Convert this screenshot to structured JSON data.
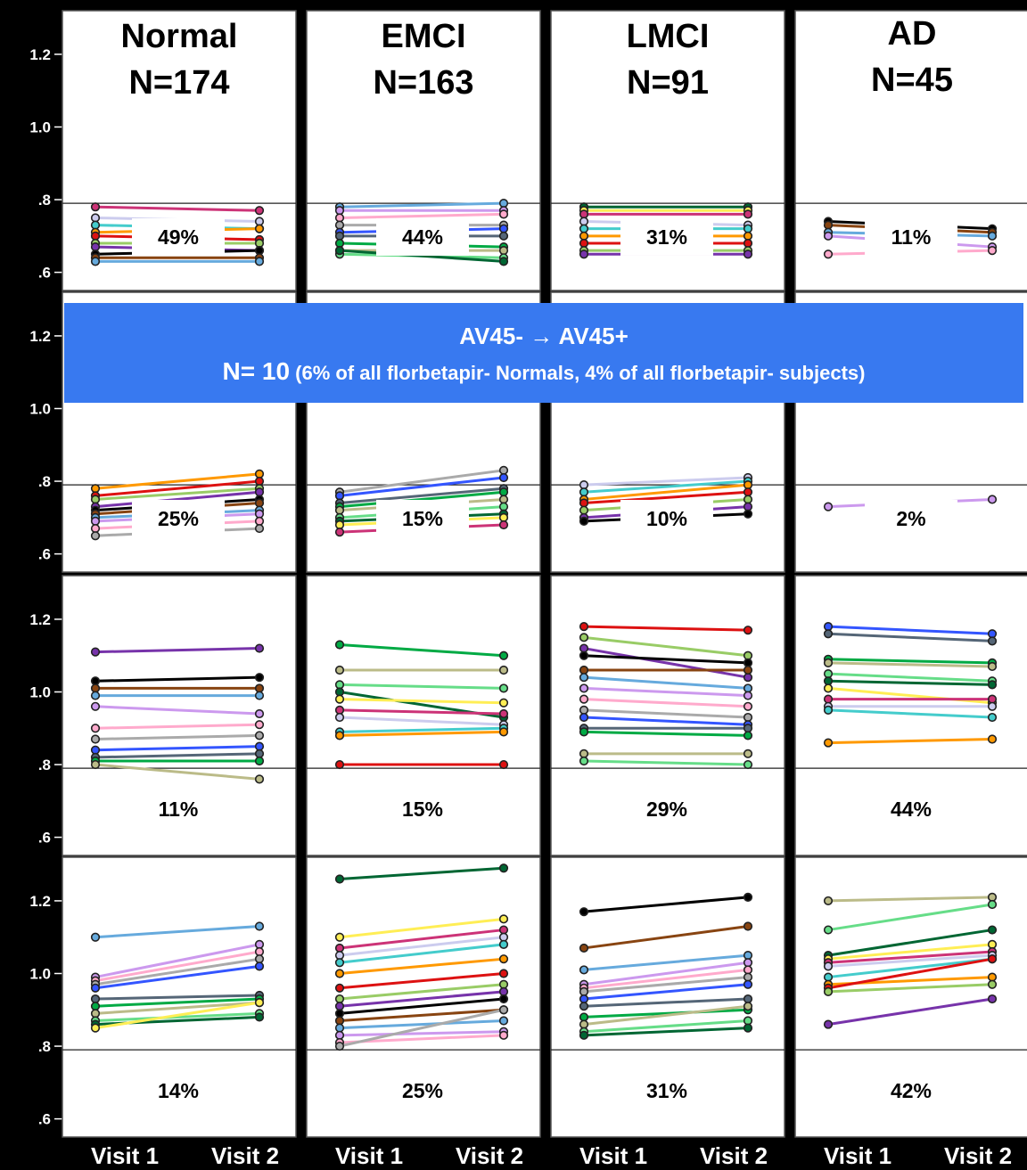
{
  "chart_data": {
    "type": "line",
    "y_ticks": [
      ".6",
      ".8",
      "1.0",
      "1.2"
    ],
    "ylim": [
      0.55,
      1.32
    ],
    "threshold": 0.79,
    "groups": [
      {
        "title": "Normal",
        "n": "N=174"
      },
      {
        "title": "EMCI",
        "n": "N=163"
      },
      {
        "title": "LMCI",
        "n": "N=91"
      },
      {
        "title": "AD",
        "n": "N=45"
      }
    ],
    "x_labels": [
      "Visit 1",
      "Visit 2"
    ],
    "banner": {
      "title": "AV45-  → AV45+",
      "n": "N= 10",
      "detail": " (6% of all florbetapir- Normals, 4% of all florbetapir- subjects)"
    },
    "rows": [
      {
        "percents": [
          "49%",
          "44%",
          "31%",
          "11%"
        ],
        "series": [
          [
            [
              0.78,
              0.77
            ],
            [
              0.75,
              0.74
            ],
            [
              0.73,
              0.72
            ],
            [
              0.71,
              0.72
            ],
            [
              0.7,
              0.69
            ],
            [
              0.68,
              0.68
            ],
            [
              0.67,
              0.66
            ],
            [
              0.65,
              0.66
            ],
            [
              0.64,
              0.64
            ],
            [
              0.63,
              0.63
            ]
          ],
          [
            [
              0.78,
              0.79
            ],
            [
              0.77,
              0.77
            ],
            [
              0.75,
              0.76
            ],
            [
              0.73,
              0.73
            ],
            [
              0.71,
              0.72
            ],
            [
              0.7,
              0.7
            ],
            [
              0.68,
              0.67
            ],
            [
              0.66,
              0.66
            ],
            [
              0.65,
              0.64
            ],
            [
              0.66,
              0.63
            ]
          ],
          [
            [
              0.78,
              0.78
            ],
            [
              0.77,
              0.77
            ],
            [
              0.76,
              0.76
            ],
            [
              0.74,
              0.73
            ],
            [
              0.72,
              0.72
            ],
            [
              0.7,
              0.7
            ],
            [
              0.68,
              0.68
            ],
            [
              0.66,
              0.66
            ],
            [
              0.65,
              0.65
            ]
          ],
          [
            [
              0.74,
              0.72
            ],
            [
              0.73,
              0.71
            ],
            [
              0.71,
              0.7
            ],
            [
              0.7,
              0.67
            ],
            [
              0.65,
              0.66
            ]
          ]
        ]
      },
      {
        "percents": [
          "25%",
          "15%",
          "10%",
          "2%"
        ],
        "series": [
          [
            [
              0.78,
              0.82
            ],
            [
              0.76,
              0.8
            ],
            [
              0.75,
              0.78
            ],
            [
              0.73,
              0.77
            ],
            [
              0.72,
              0.75
            ],
            [
              0.71,
              0.74
            ],
            [
              0.7,
              0.72
            ],
            [
              0.69,
              0.71
            ],
            [
              0.67,
              0.69
            ],
            [
              0.65,
              0.67
            ]
          ],
          [
            [
              0.77,
              0.83
            ],
            [
              0.76,
              0.81
            ],
            [
              0.74,
              0.78
            ],
            [
              0.73,
              0.77
            ],
            [
              0.72,
              0.75
            ],
            [
              0.7,
              0.73
            ],
            [
              0.69,
              0.71
            ],
            [
              0.68,
              0.7
            ],
            [
              0.66,
              0.68
            ]
          ],
          [
            [
              0.79,
              0.81
            ],
            [
              0.77,
              0.8
            ],
            [
              0.75,
              0.79
            ],
            [
              0.74,
              0.77
            ],
            [
              0.72,
              0.75
            ],
            [
              0.7,
              0.73
            ],
            [
              0.69,
              0.71
            ]
          ],
          [
            [
              0.73,
              0.75
            ]
          ]
        ]
      },
      {
        "percents": [
          "11%",
          "15%",
          "29%",
          "44%"
        ],
        "series": [
          [
            [
              1.11,
              1.12
            ],
            [
              1.03,
              1.04
            ],
            [
              1.01,
              1.01
            ],
            [
              0.99,
              0.99
            ],
            [
              0.96,
              0.94
            ],
            [
              0.9,
              0.91
            ],
            [
              0.87,
              0.88
            ],
            [
              0.84,
              0.85
            ],
            [
              0.82,
              0.83
            ],
            [
              0.81,
              0.81
            ],
            [
              0.8,
              0.76
            ]
          ],
          [
            [
              1.13,
              1.1
            ],
            [
              1.06,
              1.06
            ],
            [
              1.02,
              1.01
            ],
            [
              1.0,
              0.93
            ],
            [
              0.98,
              0.97
            ],
            [
              0.95,
              0.94
            ],
            [
              0.93,
              0.91
            ],
            [
              0.89,
              0.9
            ],
            [
              0.88,
              0.89
            ],
            [
              0.8,
              0.8
            ]
          ],
          [
            [
              1.18,
              1.17
            ],
            [
              1.15,
              1.1
            ],
            [
              1.12,
              1.04
            ],
            [
              1.1,
              1.08
            ],
            [
              1.06,
              1.06
            ],
            [
              1.04,
              1.01
            ],
            [
              1.01,
              0.99
            ],
            [
              0.98,
              0.96
            ],
            [
              0.95,
              0.93
            ],
            [
              0.93,
              0.91
            ],
            [
              0.9,
              0.9
            ],
            [
              0.89,
              0.88
            ],
            [
              0.83,
              0.83
            ],
            [
              0.81,
              0.8
            ]
          ],
          [
            [
              1.18,
              1.16
            ],
            [
              1.16,
              1.14
            ],
            [
              1.09,
              1.08
            ],
            [
              1.08,
              1.07
            ],
            [
              1.05,
              1.03
            ],
            [
              1.03,
              1.02
            ],
            [
              1.01,
              0.97
            ],
            [
              0.98,
              0.98
            ],
            [
              0.96,
              0.96
            ],
            [
              0.95,
              0.93
            ],
            [
              0.86,
              0.87
            ]
          ]
        ]
      },
      {
        "percents": [
          "14%",
          "25%",
          "31%",
          "42%"
        ],
        "series": [
          [
            [
              1.1,
              1.13
            ],
            [
              0.99,
              1.08
            ],
            [
              0.98,
              1.06
            ],
            [
              0.97,
              1.04
            ],
            [
              0.96,
              1.02
            ],
            [
              0.93,
              0.94
            ],
            [
              0.91,
              0.93
            ],
            [
              0.89,
              0.92
            ],
            [
              0.87,
              0.89
            ],
            [
              0.86,
              0.88
            ],
            [
              0.85,
              0.92
            ]
          ],
          [
            [
              1.26,
              1.29
            ],
            [
              1.1,
              1.15
            ],
            [
              1.07,
              1.12
            ],
            [
              1.05,
              1.1
            ],
            [
              1.03,
              1.08
            ],
            [
              1.0,
              1.04
            ],
            [
              0.96,
              1.0
            ],
            [
              0.93,
              0.97
            ],
            [
              0.91,
              0.95
            ],
            [
              0.89,
              0.93
            ],
            [
              0.87,
              0.9
            ],
            [
              0.85,
              0.87
            ],
            [
              0.83,
              0.84
            ],
            [
              0.81,
              0.83
            ],
            [
              0.8,
              0.9
            ]
          ],
          [
            [
              1.17,
              1.21
            ],
            [
              1.07,
              1.13
            ],
            [
              1.01,
              1.05
            ],
            [
              0.97,
              1.03
            ],
            [
              0.96,
              1.01
            ],
            [
              0.95,
              0.99
            ],
            [
              0.93,
              0.97
            ],
            [
              0.91,
              0.93
            ],
            [
              0.88,
              0.9
            ],
            [
              0.86,
              0.91
            ],
            [
              0.84,
              0.87
            ],
            [
              0.83,
              0.85
            ]
          ],
          [
            [
              1.2,
              1.21
            ],
            [
              1.12,
              1.19
            ],
            [
              1.05,
              1.12
            ],
            [
              1.04,
              1.08
            ],
            [
              1.03,
              1.06
            ],
            [
              1.02,
              1.05
            ],
            [
              0.99,
              1.04
            ],
            [
              0.97,
              0.99
            ],
            [
              0.96,
              1.04
            ],
            [
              0.95,
              0.97
            ],
            [
              0.86,
              0.93
            ]
          ]
        ]
      }
    ],
    "colors": [
      "#cc3377",
      "#ff9900",
      "#7733aa",
      "#66aadd",
      "#aaaaaa",
      "#00aa44",
      "#006633",
      "#ccccee",
      "#dd1111",
      "#000000",
      "#cc99ee",
      "#3355ff",
      "#bbbb88",
      "#ffee55",
      "#44cccc",
      "#99cc66",
      "#884411",
      "#ffaacc",
      "#556677",
      "#66dd88"
    ]
  }
}
